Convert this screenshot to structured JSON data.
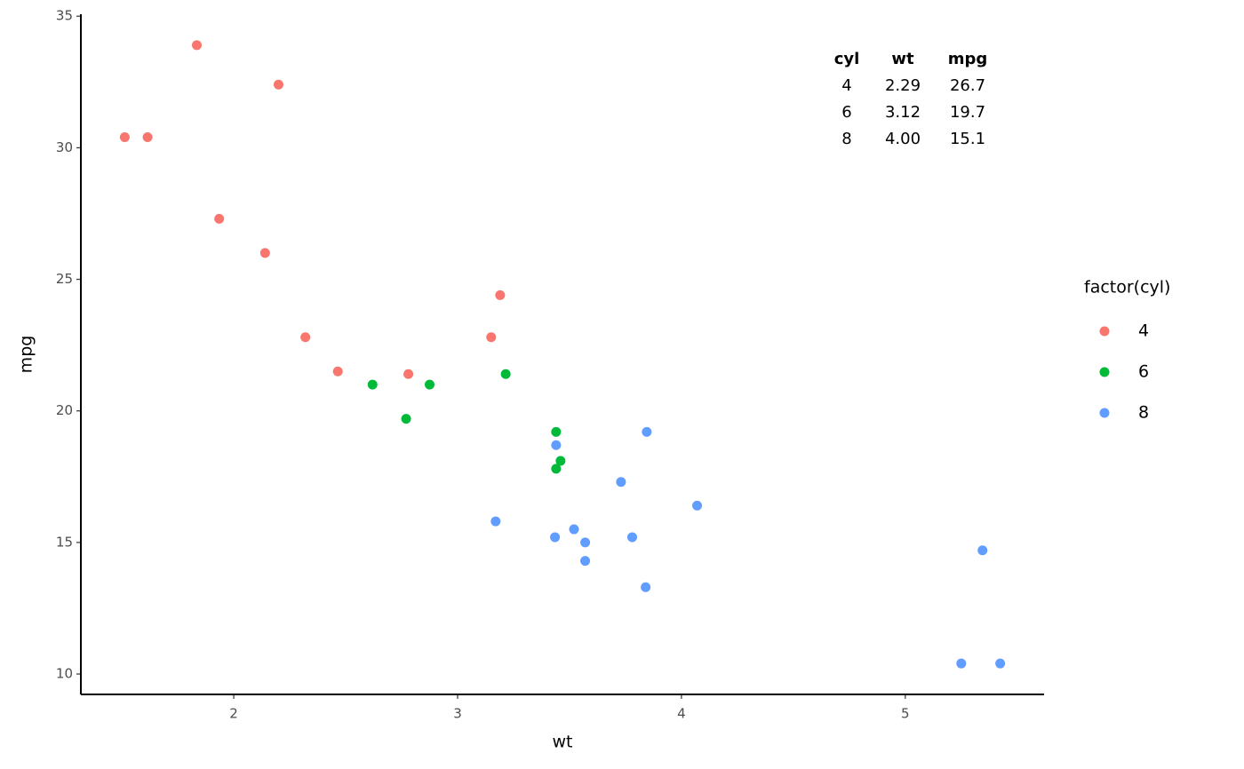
{
  "chart_data": {
    "type": "scatter",
    "x_label": "wt",
    "y_label": "mpg",
    "legend_title": "factor(cyl)",
    "xlim": [
      1.317,
      5.62
    ],
    "ylim": [
      9.225,
      35.075
    ],
    "xticks": [
      2,
      3,
      4,
      5
    ],
    "yticks": [
      10,
      15,
      20,
      25,
      30,
      35
    ],
    "legend_position": "right",
    "series": [
      {
        "name": "4",
        "color": "#F8766D",
        "x": [
          2.32,
          3.19,
          3.15,
          2.2,
          1.615,
          1.835,
          2.465,
          1.935,
          2.14,
          1.513,
          2.78
        ],
        "values": [
          22.8,
          24.4,
          22.8,
          32.4,
          30.4,
          33.9,
          21.5,
          27.3,
          26.0,
          30.4,
          21.4
        ]
      },
      {
        "name": "6",
        "color": "#00BA38",
        "x": [
          2.62,
          2.875,
          3.215,
          3.46,
          3.44,
          3.44,
          2.77
        ],
        "values": [
          21.0,
          21.0,
          21.4,
          18.1,
          19.2,
          17.8,
          19.7
        ]
      },
      {
        "name": "8",
        "color": "#619CFF",
        "x": [
          3.44,
          3.57,
          4.07,
          3.73,
          3.78,
          5.25,
          5.424,
          5.345,
          3.52,
          3.435,
          3.84,
          3.845,
          3.17,
          3.57
        ],
        "values": [
          18.7,
          14.3,
          16.4,
          17.3,
          15.2,
          10.4,
          10.4,
          14.7,
          15.5,
          15.2,
          13.3,
          19.2,
          15.8,
          15.0
        ]
      }
    ],
    "table": {
      "header": [
        "cyl",
        "wt",
        "mpg"
      ],
      "rows": [
        [
          "4",
          "2.29",
          "26.7"
        ],
        [
          "6",
          "3.12",
          "19.7"
        ],
        [
          "8",
          "4.00",
          "15.1"
        ]
      ]
    }
  }
}
